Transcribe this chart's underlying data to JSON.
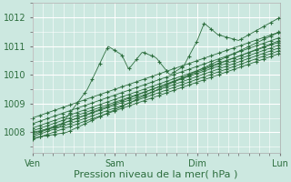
{
  "xlabel": "Pression niveau de la mer( hPa )",
  "xlim": [
    0,
    72
  ],
  "ylim": [
    1007.3,
    1012.3
  ],
  "yticks": [
    1008,
    1009,
    1010,
    1011,
    1012
  ],
  "xtick_labels": [
    "Ven",
    "Sam",
    "Dim",
    "Lun"
  ],
  "xtick_positions": [
    0,
    24,
    48,
    72
  ],
  "background_color": "#cce8e0",
  "grid_color": "#ffffff",
  "line_color": "#2d6e3e",
  "figsize": [
    3.2,
    2.0
  ],
  "dpi": 100,
  "xlabel_fontsize": 8,
  "tick_fontsize": 7
}
